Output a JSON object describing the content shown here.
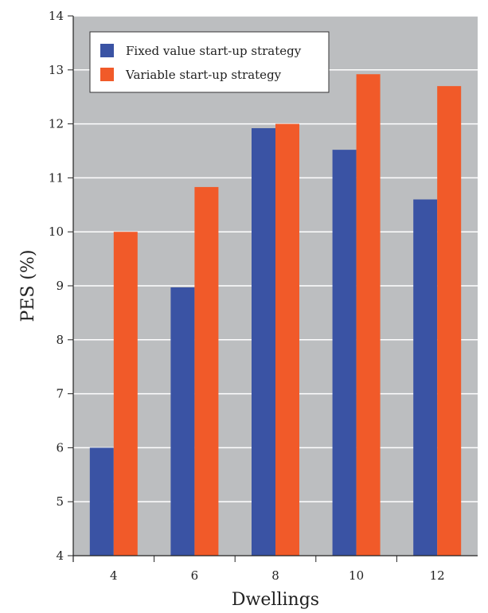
{
  "chart_data": {
    "type": "bar",
    "title": "",
    "xlabel": "Dwellings",
    "ylabel": "PES (%)",
    "categories": [
      "4",
      "6",
      "8",
      "10",
      "12"
    ],
    "series": [
      {
        "name": "Fixed value start-up strategy",
        "color": "#3A53A4",
        "values": [
          6.0,
          8.97,
          11.92,
          11.52,
          10.6
        ]
      },
      {
        "name": "Variable start-up strategy",
        "color": "#F15A29",
        "values": [
          10.0,
          10.83,
          12.0,
          12.92,
          12.7
        ]
      }
    ],
    "ylim": [
      4,
      14
    ],
    "yticks": [
      4,
      5,
      6,
      7,
      8,
      9,
      10,
      11,
      12,
      13,
      14
    ],
    "grid": true,
    "legend_position": "top-left",
    "plot_background": "#BCBEC0"
  }
}
